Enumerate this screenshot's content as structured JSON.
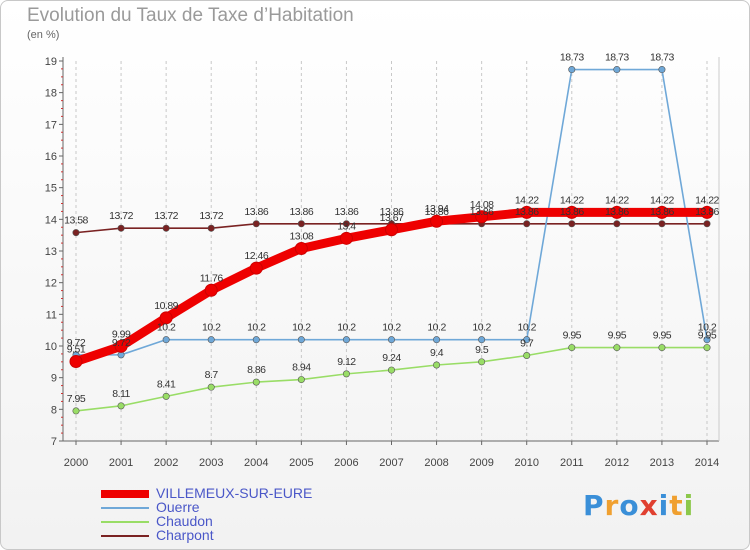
{
  "header": {
    "title": "Evolution du Taux de Taxe d’Habitation",
    "unit": "(en %)"
  },
  "brand": {
    "letters": [
      "P",
      "r",
      "o",
      "x",
      "i",
      "t",
      "i"
    ],
    "colors": [
      "#3a8fd8",
      "#f0a030",
      "#3a8fd8",
      "#e04030",
      "#3a8fd8",
      "#f0a030",
      "#8cc84b"
    ]
  },
  "chart_data": {
    "type": "line",
    "title": "Evolution du Taux de Taxe d’Habitation",
    "ylabel": "(en %)",
    "xlabel": "",
    "ylim": [
      7,
      19
    ],
    "yticks": [
      7,
      8,
      9,
      10,
      11,
      12,
      13,
      14,
      15,
      16,
      17,
      18,
      19
    ],
    "grid": "vertical dashed",
    "legend_position": "bottom-left",
    "categories": [
      "2000",
      "2001",
      "2002",
      "2003",
      "2004",
      "2005",
      "2006",
      "2007",
      "2008",
      "2009",
      "2010",
      "2011",
      "2012",
      "2013",
      "2014"
    ],
    "series": [
      {
        "name": "Charpont",
        "color": "#7a2222",
        "values": [
          13.58,
          13.72,
          13.72,
          13.72,
          13.86,
          13.86,
          13.86,
          13.86,
          13.86,
          13.86,
          13.86,
          13.86,
          13.86,
          13.86,
          13.86
        ]
      },
      {
        "name": "Chaudon",
        "color": "#99dd66",
        "values": [
          7.95,
          8.11,
          8.41,
          8.7,
          8.86,
          8.94,
          9.12,
          9.24,
          9.4,
          9.5,
          9.7,
          9.95,
          9.95,
          9.95,
          9.95
        ]
      },
      {
        "name": "Ouerre",
        "color": "#6fa8d8",
        "values": [
          9.72,
          9.72,
          10.2,
          10.2,
          10.2,
          10.2,
          10.2,
          10.2,
          10.2,
          10.2,
          10.2,
          18.73,
          18.73,
          18.73,
          10.2
        ]
      },
      {
        "name": "VILLEMEUX-SUR-EURE",
        "color": "#ee0000",
        "values": [
          9.51,
          9.99,
          10.89,
          11.76,
          12.46,
          13.08,
          13.4,
          13.67,
          13.94,
          14.08,
          14.22,
          14.22,
          14.22,
          14.22,
          14.22
        ]
      }
    ],
    "legend": [
      "VILLEMEUX-SUR-EURE",
      "Ouerre",
      "Chaudon",
      "Charpont"
    ]
  }
}
